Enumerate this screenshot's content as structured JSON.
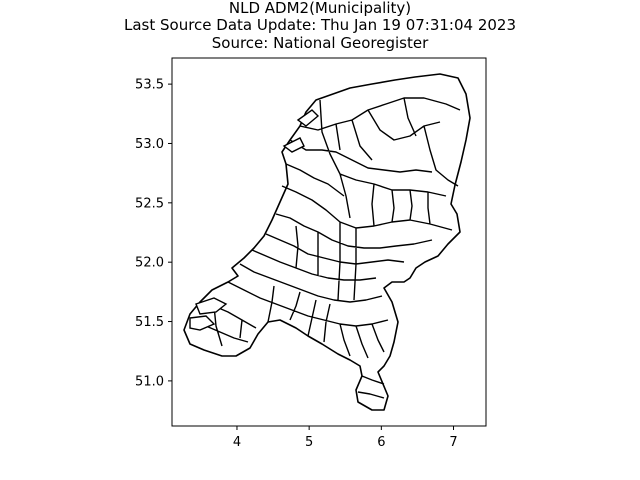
{
  "title": {
    "line1": "NLD ADM2(Municipality)",
    "line2": "Last Source Data Update: Thu Jan 19 07:31:04 2023",
    "line3": "Source: National Georegister"
  },
  "chart_data": {
    "type": "map",
    "xlim": [
      3.1,
      7.45
    ],
    "ylim": [
      50.62,
      53.72
    ],
    "x_ticks": [
      4,
      5,
      6,
      7
    ],
    "y_ticks": [
      51.0,
      51.5,
      52.0,
      52.5,
      53.0,
      53.5
    ],
    "x_tick_labels": [
      "4",
      "5",
      "6",
      "7"
    ],
    "y_tick_labels": [
      "51.0",
      "51.5",
      "52.0",
      "52.5",
      "53.0",
      "53.5"
    ],
    "grid": false,
    "colors": {
      "stroke": "#000000",
      "fill": "#ffffff"
    }
  }
}
